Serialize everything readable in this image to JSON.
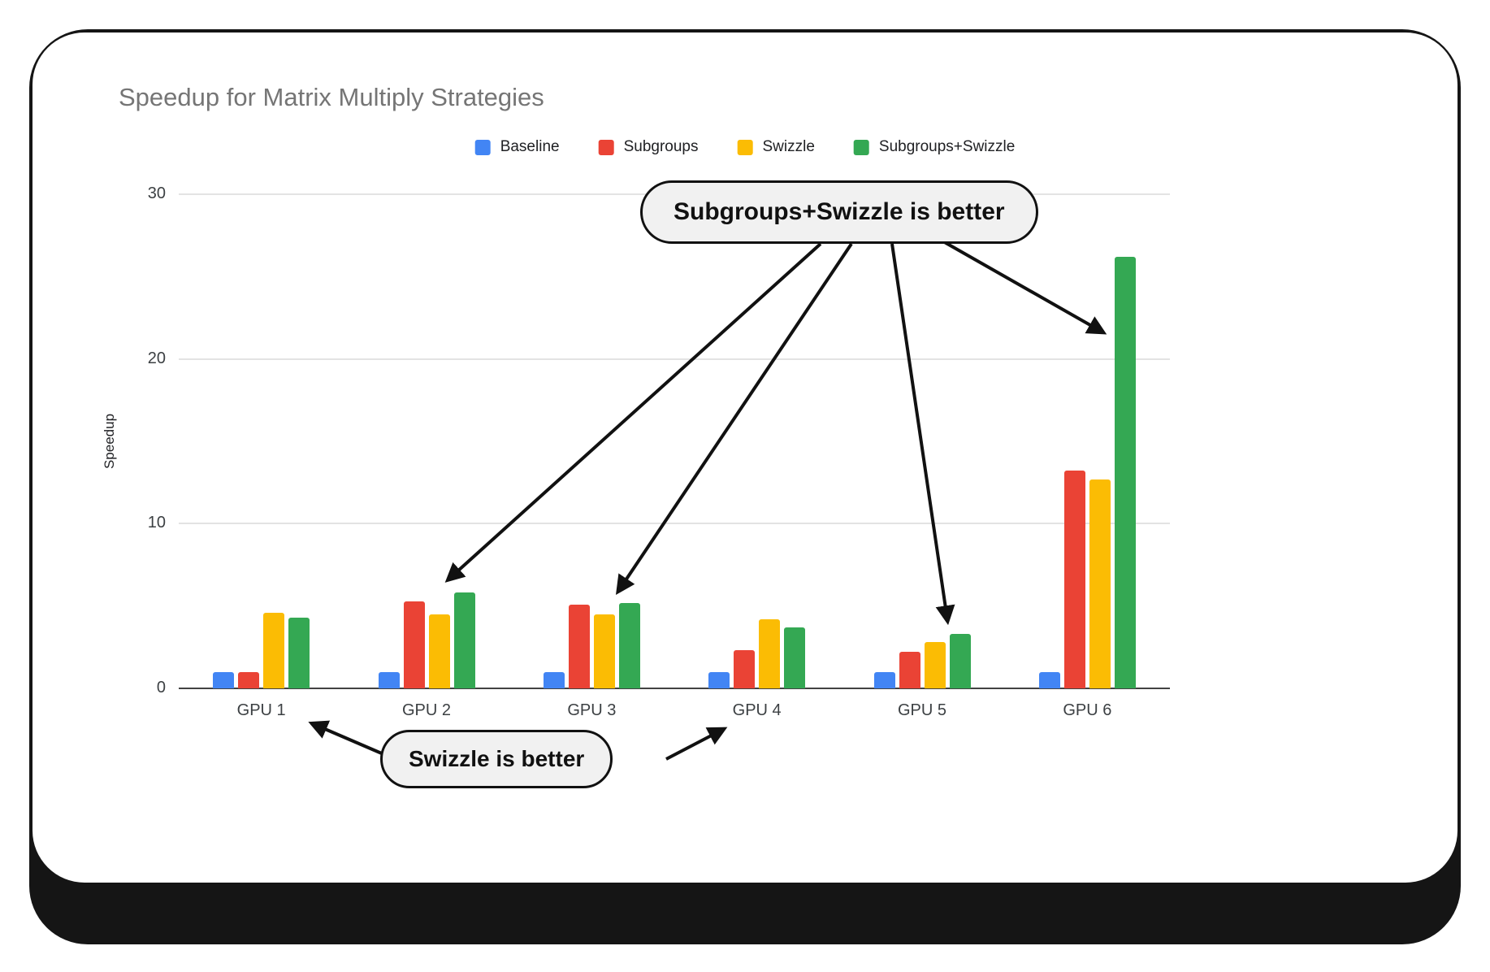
{
  "card": {
    "title": "Speedup for Matrix Multiply Strategies"
  },
  "chart_data": {
    "type": "bar",
    "title": "Speedup for Matrix Multiply Strategies",
    "categories": [
      "GPU 1",
      "GPU 2",
      "GPU 3",
      "GPU 4",
      "GPU 5",
      "GPU 6"
    ],
    "series": [
      {
        "name": "Baseline",
        "color": "#4285F4",
        "values": [
          1.0,
          1.0,
          1.0,
          1.0,
          1.0,
          1.0
        ]
      },
      {
        "name": "Subgroups",
        "color": "#EA4335",
        "values": [
          1.0,
          5.3,
          5.1,
          2.3,
          2.2,
          13.2
        ]
      },
      {
        "name": "Swizzle",
        "color": "#FBBC04",
        "values": [
          4.6,
          4.5,
          4.5,
          4.2,
          2.8,
          12.7
        ]
      },
      {
        "name": "Subgroups+Swizzle",
        "color": "#34A853",
        "values": [
          4.3,
          5.8,
          5.2,
          3.7,
          3.3,
          26.2
        ]
      }
    ],
    "xlabel": "",
    "ylabel": "Speedup",
    "ylim": [
      0,
      30
    ],
    "yticks": [
      0,
      10,
      20,
      30
    ],
    "grid": true,
    "legend_position": "top"
  },
  "annotations": [
    {
      "text": "Subgroups+Swizzle is better",
      "targets": [
        "GPU 2 Subgroups+Swizzle bar",
        "GPU 3 Subgroups+Swizzle bar",
        "GPU 5 Subgroups+Swizzle bar",
        "GPU 6 Subgroups+Swizzle bar"
      ]
    },
    {
      "text": "Swizzle is better",
      "targets": [
        "GPU 1",
        "GPU 4"
      ]
    }
  ]
}
